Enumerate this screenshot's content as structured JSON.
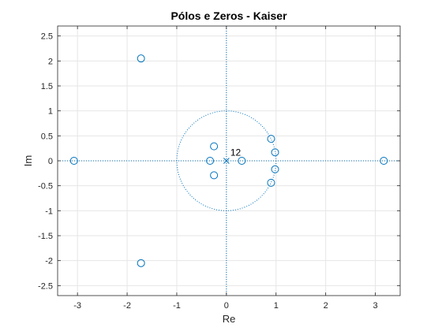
{
  "chart_data": {
    "type": "scatter",
    "title": "Pólos e Zeros - Kaiser",
    "xlabel": "Re",
    "ylabel": "Im",
    "xlim": [
      -3.4,
      3.5
    ],
    "ylim": [
      -2.7,
      2.7
    ],
    "xticks": [
      -3,
      -2,
      -1,
      0,
      1,
      2,
      3
    ],
    "xtick_labels": [
      "-3",
      "-2",
      "-1",
      "0",
      "1",
      "2",
      "3"
    ],
    "yticks": [
      -2.5,
      -2,
      -1.5,
      -1,
      -0.5,
      0,
      0.5,
      1,
      1.5,
      2,
      2.5
    ],
    "ytick_labels": [
      "-2.5",
      "-2",
      "-1.5",
      "-1",
      "-0.5",
      "0",
      "0.5",
      "1",
      "1.5",
      "2",
      "2.5"
    ],
    "grid": true,
    "unit_circle": true,
    "colors": {
      "marker": "#0072BD",
      "grid": "#e6e6e6",
      "axes": "#262626"
    },
    "series": [
      {
        "marker": "circle",
        "points": [
          [
            -3.07,
            0
          ],
          [
            3.17,
            0
          ],
          [
            -1.72,
            2.05
          ],
          [
            -1.72,
            -2.05
          ],
          [
            -0.33,
            0
          ],
          [
            0.31,
            0
          ],
          [
            -0.25,
            0.29
          ],
          [
            -0.25,
            -0.29
          ],
          [
            0.9,
            0.44
          ],
          [
            0.9,
            -0.44
          ],
          [
            0.98,
            0.17
          ],
          [
            0.98,
            -0.17
          ]
        ]
      },
      {
        "marker": "x",
        "points": [
          [
            0,
            0
          ]
        ]
      }
    ],
    "annotations": [
      {
        "text": "12",
        "x": 0.08,
        "y": 0.1
      }
    ]
  }
}
